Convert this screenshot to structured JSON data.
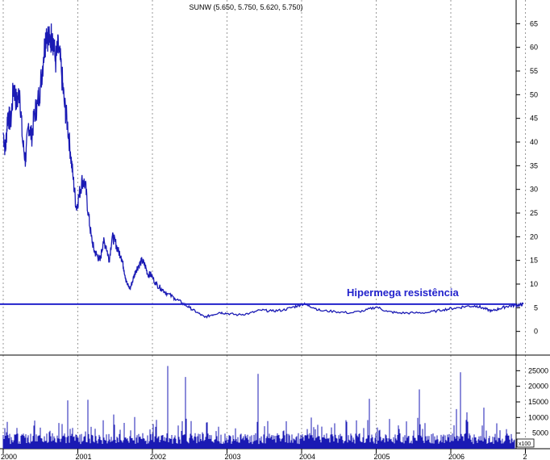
{
  "chart_data": [
    {
      "type": "line",
      "title": "SUNW (5.650, 5.750, 5.620, 5.750)",
      "x": [
        "2000",
        "2001",
        "2002",
        "2003",
        "2004",
        "2005",
        "2006",
        "2"
      ],
      "ylim": [
        -5,
        70
      ],
      "yticks": [
        0,
        5,
        10,
        15,
        20,
        25,
        30,
        35,
        40,
        45,
        50,
        55,
        60,
        65
      ],
      "grid": "vertical dotted at year starts",
      "series": [
        {
          "color": "#1a1ab4",
          "points": [
            [
              2000.0,
              42
            ],
            [
              2000.03,
              38
            ],
            [
              2000.06,
              46
            ],
            [
              2000.1,
              44
            ],
            [
              2000.14,
              52
            ],
            [
              2000.18,
              48
            ],
            [
              2000.22,
              51
            ],
            [
              2000.26,
              40
            ],
            [
              2000.3,
              36
            ],
            [
              2000.34,
              44
            ],
            [
              2000.38,
              41
            ],
            [
              2000.42,
              46
            ],
            [
              2000.46,
              48
            ],
            [
              2000.5,
              52
            ],
            [
              2000.54,
              58
            ],
            [
              2000.58,
              64
            ],
            [
              2000.62,
              61
            ],
            [
              2000.66,
              63
            ],
            [
              2000.7,
              57
            ],
            [
              2000.74,
              60
            ],
            [
              2000.78,
              55
            ],
            [
              2000.82,
              48
            ],
            [
              2000.86,
              44
            ],
            [
              2000.9,
              38
            ],
            [
              2000.94,
              32
            ],
            [
              2000.98,
              26
            ],
            [
              2001.02,
              29
            ],
            [
              2001.06,
              32
            ],
            [
              2001.1,
              31
            ],
            [
              2001.14,
              25
            ],
            [
              2001.18,
              20
            ],
            [
              2001.22,
              17
            ],
            [
              2001.26,
              16
            ],
            [
              2001.3,
              15
            ],
            [
              2001.34,
              19
            ],
            [
              2001.38,
              18
            ],
            [
              2001.42,
              15
            ],
            [
              2001.46,
              20
            ],
            [
              2001.5,
              19
            ],
            [
              2001.54,
              17
            ],
            [
              2001.58,
              16
            ],
            [
              2001.62,
              13
            ],
            [
              2001.66,
              10
            ],
            [
              2001.7,
              9
            ],
            [
              2001.74,
              11
            ],
            [
              2001.78,
              13
            ],
            [
              2001.82,
              14
            ],
            [
              2001.86,
              15
            ],
            [
              2001.9,
              14
            ],
            [
              2001.94,
              12
            ],
            [
              2001.98,
              12
            ],
            [
              2002.05,
              10
            ],
            [
              2002.12,
              9
            ],
            [
              2002.2,
              8
            ],
            [
              2002.3,
              7
            ],
            [
              2002.4,
              6
            ],
            [
              2002.5,
              5
            ],
            [
              2002.6,
              4
            ],
            [
              2002.7,
              3
            ],
            [
              2002.8,
              3.5
            ],
            [
              2002.9,
              4
            ],
            [
              2003.0,
              3.8
            ],
            [
              2003.15,
              3.5
            ],
            [
              2003.3,
              3.8
            ],
            [
              2003.45,
              4.5
            ],
            [
              2003.6,
              4.3
            ],
            [
              2003.75,
              4.5
            ],
            [
              2003.9,
              5.2
            ],
            [
              2004.0,
              5.8
            ],
            [
              2004.1,
              5.5
            ],
            [
              2004.25,
              4.4
            ],
            [
              2004.45,
              4.2
            ],
            [
              2004.65,
              3.9
            ],
            [
              2004.85,
              4.4
            ],
            [
              2005.0,
              5.2
            ],
            [
              2005.15,
              4.2
            ],
            [
              2005.3,
              3.9
            ],
            [
              2005.5,
              3.9
            ],
            [
              2005.7,
              4.0
            ],
            [
              2005.9,
              4.6
            ],
            [
              2006.05,
              4.9
            ],
            [
              2006.2,
              5.3
            ],
            [
              2006.35,
              5.4
            ],
            [
              2006.45,
              4.8
            ],
            [
              2006.55,
              4.3
            ],
            [
              2006.65,
              4.8
            ],
            [
              2006.75,
              5.3
            ],
            [
              2006.85,
              5.5
            ],
            [
              2006.92,
              5.6
            ],
            [
              2006.97,
              5.75
            ]
          ]
        }
      ],
      "annotations": [
        {
          "text": "Hipermega resistência",
          "value": 5.75,
          "color": "#2222cc"
        }
      ]
    },
    {
      "type": "bar",
      "title": "",
      "ylim": [
        0,
        30000
      ],
      "yticks": [
        5000,
        10000,
        15000,
        20000,
        25000
      ],
      "unit_label": "x100",
      "series": [
        {
          "color": "#1a1ab4",
          "description": ""
        }
      ]
    }
  ]
}
